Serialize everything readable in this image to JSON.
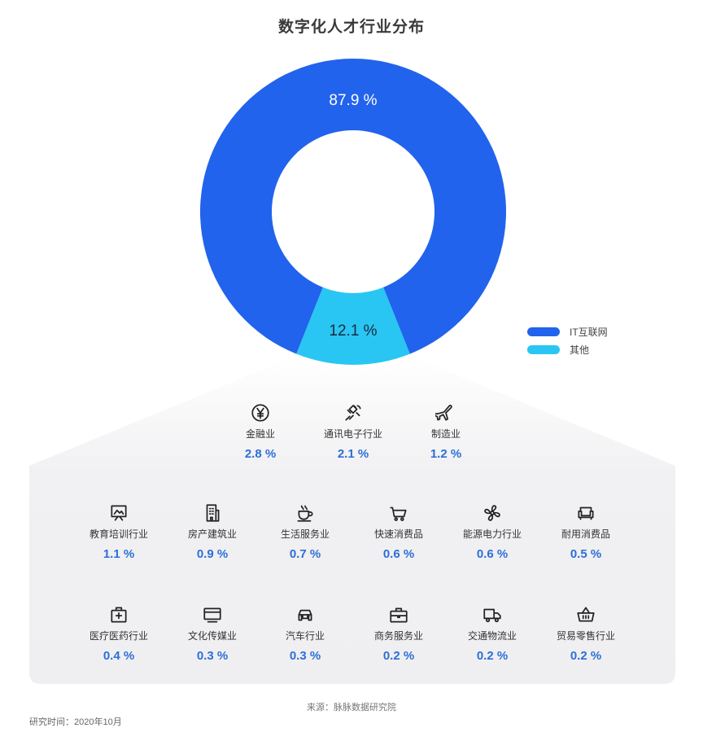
{
  "chart_data": {
    "type": "pie",
    "title": "数字化人才行业分布",
    "slices": [
      {
        "label": "IT互联网",
        "value": 87.9,
        "display": "87.9 %",
        "color": "#2163ec"
      },
      {
        "label": "其他",
        "value": 12.1,
        "display": "12.1 %",
        "color": "#29c6f3"
      }
    ],
    "legend_position": "right",
    "breakdown": [
      {
        "label": "金融业",
        "value": 2.8,
        "display": "2.8 %",
        "icon": "yen-coin-icon"
      },
      {
        "label": "通讯电子行业",
        "value": 2.1,
        "display": "2.1 %",
        "icon": "satellite-icon"
      },
      {
        "label": "制造业",
        "value": 1.2,
        "display": "1.2 %",
        "icon": "airplane-icon"
      },
      {
        "label": "教育培训行业",
        "value": 1.1,
        "display": "1.1 %",
        "icon": "easel-icon"
      },
      {
        "label": "房产建筑业",
        "value": 0.9,
        "display": "0.9 %",
        "icon": "building-icon"
      },
      {
        "label": "生活服务业",
        "value": 0.7,
        "display": "0.7 %",
        "icon": "coffee-cup-icon"
      },
      {
        "label": "快速消费品",
        "value": 0.6,
        "display": "0.6 %",
        "icon": "shopping-basket-icon"
      },
      {
        "label": "能源电力行业",
        "value": 0.6,
        "display": "0.6 %",
        "icon": "fan-icon"
      },
      {
        "label": "耐用消费品",
        "value": 0.5,
        "display": "0.5 %",
        "icon": "sofa-icon"
      },
      {
        "label": "医疗医药行业",
        "value": 0.4,
        "display": "0.4 %",
        "icon": "medical-kit-icon"
      },
      {
        "label": "文化传媒业",
        "value": 0.3,
        "display": "0.3 %",
        "icon": "monitor-icon"
      },
      {
        "label": "汽车行业",
        "value": 0.3,
        "display": "0.3 %",
        "icon": "car-icon"
      },
      {
        "label": "商务服务业",
        "value": 0.2,
        "display": "0.2 %",
        "icon": "briefcase-icon"
      },
      {
        "label": "交通物流业",
        "value": 0.2,
        "display": "0.2 %",
        "icon": "truck-icon"
      },
      {
        "label": "贸易零售行业",
        "value": 0.2,
        "display": "0.2 %",
        "icon": "cart-basket-icon"
      }
    ]
  },
  "footer": {
    "source": "来源：脉脉数据研究院",
    "time": "研究时间：2020年10月"
  }
}
